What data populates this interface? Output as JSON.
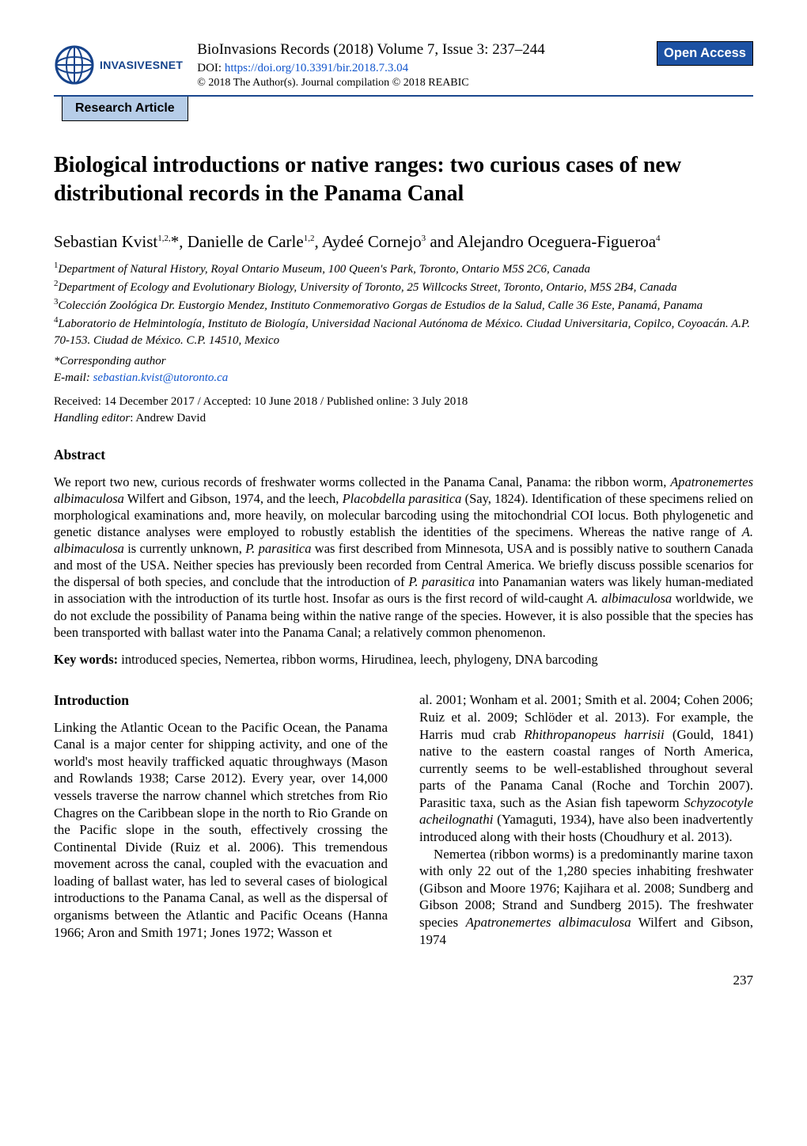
{
  "header": {
    "logo_text": "INVASIVESNET",
    "journal_line": "BioInvasions Records (2018) Volume 7, Issue 3: 237–244",
    "doi_label": "DOI: ",
    "doi_link": "https://doi.org/10.3391/bir.2018.7.3.04",
    "copyright": "© 2018 The Author(s). Journal compilation © 2018 REABIC",
    "open_access": "Open Access",
    "section_label": "Research Article"
  },
  "title": "Biological introductions or native ranges: two curious cases of new distributional records in the Panama Canal",
  "authors_html": "Sebastian Kvist<sup>1,2,</sup>*, Danielle de Carle<sup>1,2</sup>, Aydeé Cornejo<sup>3</sup> and Alejandro Oceguera-Figueroa<sup>4</sup>",
  "affiliations": [
    "<sup>1</sup>Department of Natural History, Royal Ontario Museum, 100 Queen's Park, Toronto, Ontario M5S 2C6, Canada",
    "<sup>2</sup>Department of Ecology and Evolutionary Biology, University of Toronto, 25 Willcocks Street, Toronto, Ontario, M5S 2B4, Canada",
    "<sup>3</sup>Colección Zoológica Dr. Eustorgio Mendez, Instituto Conmemorativo Gorgas de Estudios de la Salud, Calle 36 Este, Panamá, Panama",
    "<sup>4</sup>Laboratorio de Helmintología, Instituto de Biología, Universidad Nacional Autónoma de México. Ciudad Universitaria, Copilco, Coyoacán. A.P. 70-153. Ciudad de México. C.P. 14510, Mexico"
  ],
  "corresponding": "*Corresponding author",
  "email_label": "E-mail: ",
  "email": "sebastian.kvist@utoronto.ca",
  "dates": "Received: 14 December 2017 / Accepted: 10 June 2018 / Published online: 3 July 2018",
  "editor_label": "Handling editor",
  "editor_name": ": Andrew David",
  "abstract_heading": "Abstract",
  "abstract_body": "We report two new, curious records of freshwater worms collected in the Panama Canal, Panama: the ribbon worm, <span class=\"species\">Apatronemertes albimaculosa</span> Wilfert and Gibson, 1974, and the leech, <span class=\"species\">Placobdella parasitica</span> (Say, 1824). Identification of these specimens relied on morphological examinations and, more heavily, on molecular barcoding using the mitochondrial COI locus. Both phylogenetic and genetic distance analyses were employed to robustly establish the identities of the specimens. Whereas the native range of <span class=\"species\">A. albimaculosa</span> is currently unknown, <span class=\"species\">P. parasitica</span> was first described from Minnesota, USA and is possibly native to southern Canada and most of the USA. Neither species has previously been recorded from Central America. We briefly discuss possible scenarios for the dispersal of both species, and conclude that the introduction of <span class=\"species\">P. parasitica</span> into Panamanian waters was likely human-mediated in association with the introduction of its turtle host. Insofar as ours is the first record of wild-caught <span class=\"species\">A. albimaculosa</span> worldwide, we do not exclude the possibility of Panama being within the native range of the species. However, it is also possible that the species has been transported with ballast water into the Panama Canal; a relatively common phenomenon.",
  "keywords_label": "Key words:",
  "keywords": " introduced species, Nemertea, ribbon worms, Hirudinea, leech, phylogeny, DNA barcoding",
  "intro_heading": "Introduction",
  "intro_col1_p1": "Linking the Atlantic Ocean to the Pacific Ocean, the Panama Canal is a major center for shipping activity, and one of the world's most heavily trafficked aquatic throughways (Mason and Rowlands 1938; Carse 2012). Every year, over 14,000 vessels traverse the narrow channel which stretches from Rio Chagres on the Caribbean slope in the north to Rio Grande on the Pacific slope in the south, effectively crossing the Continental Divide (Ruiz et al. 2006). This tremendous movement across the canal, coupled with the evacuation and loading of ballast water, has led to several cases of biological introductions to the Panama Canal, as well as the dispersal of organisms between the Atlantic and Pacific Oceans (Hanna 1966; Aron and Smith 1971; Jones 1972; Wasson et",
  "intro_col2_p1": "al. 2001; Wonham et al. 2001; Smith et al. 2004; Cohen 2006; Ruiz et al. 2009; Schlöder et al. 2013). For example, the Harris mud crab <span class=\"species\">Rhithropanopeus harrisii</span> (Gould, 1841) native to the eastern coastal ranges of North America, currently seems to be well-established throughout several parts of the Panama Canal (Roche and Torchin 2007). Parasitic taxa, such as the Asian fish tapeworm <span class=\"species\">Schyzocotyle acheilognathi</span> (Yamaguti, 1934), have also been inadvertently introduced along with their hosts (Choudhury et al. 2013).",
  "intro_col2_p2": "Nemertea (ribbon worms) is a predominantly marine taxon with only 22 out of the 1,280 species inhabiting freshwater (Gibson and Moore 1976; Kajihara et al. 2008; Sundberg and Gibson 2008; Strand and Sundberg 2015). The freshwater species <span class=\"species\">Apatronemertes albimaculosa</span> Wilfert and Gibson, 1974",
  "page_number": "237",
  "colors": {
    "brand_blue": "#16438b",
    "open_access_bg": "#1c51a3",
    "pill_bg": "#b6cde8",
    "link_blue": "#1155cc",
    "text": "#000000",
    "background": "#ffffff"
  }
}
